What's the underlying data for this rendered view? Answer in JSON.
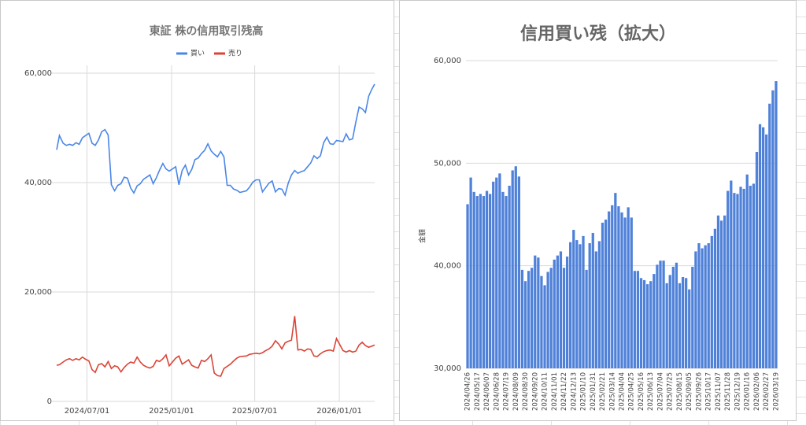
{
  "chart_data": [
    {
      "type": "line",
      "title": "東証 株の信用取引残高",
      "x": [
        "2024/04/26",
        "2024/05/02",
        "2024/05/10",
        "2024/05/17",
        "2024/05/24",
        "2024/05/31",
        "2024/06/07",
        "2024/06/14",
        "2024/06/21",
        "2024/06/28",
        "2024/07/05",
        "2024/07/12",
        "2024/07/19",
        "2024/07/26",
        "2024/08/02",
        "2024/08/09",
        "2024/08/16",
        "2024/08/23",
        "2024/08/30",
        "2024/09/06",
        "2024/09/13",
        "2024/09/20",
        "2024/09/27",
        "2024/10/04",
        "2024/10/11",
        "2024/10/18",
        "2024/10/25",
        "2024/11/01",
        "2024/11/08",
        "2024/11/15",
        "2024/11/22",
        "2024/11/29",
        "2024/12/06",
        "2024/12/13",
        "2024/12/20",
        "2024/12/27",
        "2025/01/10",
        "2025/01/17",
        "2025/01/24",
        "2025/01/31",
        "2025/02/07",
        "2025/02/14",
        "2025/02/21",
        "2025/02/28",
        "2025/03/07",
        "2025/03/14",
        "2025/03/21",
        "2025/03/28",
        "2025/04/04",
        "2025/04/11",
        "2025/04/18",
        "2025/04/25",
        "2025/05/02",
        "2025/05/09",
        "2025/05/16",
        "2025/05/23",
        "2025/05/30",
        "2025/06/13",
        "2025/06/20",
        "2025/06/27",
        "2025/07/04",
        "2025/07/11",
        "2025/07/18",
        "2025/07/25",
        "2025/08/01",
        "2025/08/08",
        "2025/08/15",
        "2025/08/22",
        "2025/08/29",
        "2025/09/05",
        "2025/09/12",
        "2025/09/19",
        "2025/09/26",
        "2025/10/03",
        "2025/10/10",
        "2025/10/17",
        "2025/10/24",
        "2025/10/31",
        "2025/11/07",
        "2025/11/14",
        "2025/11/21",
        "2025/11/28",
        "2025/12/05",
        "2025/12/12",
        "2025/12/19",
        "2025/12/26",
        "2026/01/09",
        "2026/01/16",
        "2026/01/23",
        "2026/01/30",
        "2026/02/06",
        "2026/02/13",
        "2026/02/20",
        "2026/02/27",
        "2026/03/06",
        "2026/03/13",
        "2026/03/19"
      ],
      "series": [
        {
          "name": "買い",
          "color": "#4a86e8",
          "values": [
            46000,
            48600,
            47200,
            46800,
            47000,
            46800,
            47300,
            47000,
            48200,
            48600,
            49000,
            47200,
            46800,
            47800,
            49300,
            49700,
            48700,
            39600,
            38500,
            39500,
            39800,
            41000,
            40800,
            39000,
            38100,
            39400,
            39800,
            40600,
            41000,
            41400,
            39800,
            40900,
            42300,
            43500,
            42500,
            42100,
            42900,
            39600,
            42200,
            43200,
            41400,
            42400,
            44200,
            44500,
            45300,
            45900,
            47100,
            45800,
            45200,
            44700,
            45700,
            44700,
            39500,
            39500,
            38800,
            38600,
            38200,
            38500,
            39200,
            40100,
            40500,
            40500,
            38300,
            39100,
            39900,
            40300,
            38300,
            38900,
            38800,
            37700,
            39900,
            41400,
            42200,
            41700,
            42000,
            42200,
            42900,
            43600,
            44900,
            44400,
            44900,
            47300,
            48300,
            47100,
            47000,
            47700,
            47500,
            48900,
            47800,
            48000,
            51100,
            53800,
            53500,
            52800,
            55800,
            57100,
            58000
          ]
        },
        {
          "name": "売り",
          "color": "#db4437",
          "values": [
            6600,
            6700,
            7200,
            7600,
            7800,
            7500,
            7800,
            7600,
            8100,
            7700,
            7400,
            5800,
            5300,
            6700,
            6900,
            6300,
            7300,
            6000,
            6500,
            6300,
            5400,
            6200,
            6800,
            7200,
            7000,
            8100,
            7200,
            6600,
            6300,
            6100,
            6400,
            7500,
            7300,
            7800,
            8500,
            6500,
            7900,
            8300,
            6800,
            7200,
            7600,
            6600,
            6300,
            6100,
            7500,
            7300,
            7800,
            8500,
            5200,
            4700,
            4600,
            6000,
            6400,
            6800,
            7400,
            7900,
            8200,
            8300,
            8600,
            8700,
            8800,
            8700,
            8900,
            9300,
            9600,
            10100,
            11100,
            10500,
            9600,
            10700,
            11000,
            11200,
            15600,
            9400,
            9500,
            9200,
            9600,
            9500,
            8300,
            8200,
            8700,
            9100,
            9300,
            9400,
            9200,
            11500,
            9300,
            9000,
            9300,
            9000,
            9200,
            10300,
            10800,
            10200,
            9900,
            10100,
            10300
          ]
        }
      ],
      "xlim": [
        "2024/04/26",
        "2026/03/19"
      ],
      "xticks": [
        "2024/07/01",
        "2025/01/01",
        "2025/07/01",
        "2026/01/01"
      ],
      "ylim": [
        0,
        60000
      ],
      "yticks": [
        0,
        {
          "value": 20000,
          "label": "20,000"
        },
        {
          "value": 40000,
          "label": "40,000"
        },
        {
          "value": 60000,
          "label": "60,000"
        }
      ],
      "grid": true,
      "legend": "top"
    },
    {
      "type": "bar",
      "title": "信用買い残（拡大）",
      "y_label": "金額",
      "color": "#4f81d9",
      "categories": [
        "2024/04/26",
        null,
        null,
        "2024/05/17",
        null,
        null,
        "2024/06/07",
        null,
        null,
        "2024/06/28",
        null,
        null,
        "2024/07/19",
        null,
        null,
        "2024/08/09",
        null,
        null,
        "2024/08/30",
        null,
        null,
        "2024/09/20",
        null,
        null,
        "2024/10/11",
        null,
        null,
        "2024/11/01",
        null,
        null,
        "2024/11/22",
        null,
        null,
        "2024/12/13",
        null,
        null,
        "2025/01/10",
        null,
        null,
        "2025/01/31",
        null,
        null,
        "2025/02/21",
        null,
        null,
        "2025/03/14",
        null,
        null,
        "2025/04/04",
        null,
        null,
        "2025/04/25",
        null,
        null,
        "2025/05/16",
        null,
        null,
        "2025/06/13",
        null,
        null,
        "2025/07/04",
        null,
        null,
        "2025/07/25",
        null,
        null,
        "2025/08/15",
        null,
        null,
        "2025/09/05",
        null,
        null,
        "2025/09/26",
        null,
        null,
        "2025/10/17",
        null,
        null,
        "2025/11/07",
        null,
        null,
        "2025/11/28",
        null,
        null,
        "2025/12/19",
        null,
        null,
        "2026/01/16",
        null,
        null,
        "2026/02/06",
        null,
        null,
        "2026/02/27",
        null,
        null,
        "2026/03/19"
      ],
      "values": [
        46000,
        48600,
        47200,
        46800,
        47000,
        46800,
        47300,
        47000,
        48200,
        48600,
        49000,
        47200,
        46800,
        47800,
        49300,
        49700,
        48700,
        39600,
        38500,
        39500,
        39800,
        41000,
        40800,
        39000,
        38100,
        39400,
        39800,
        40600,
        41000,
        41400,
        39800,
        40900,
        42300,
        43500,
        42500,
        42100,
        42900,
        39600,
        42200,
        43200,
        41400,
        42400,
        44200,
        44500,
        45300,
        45900,
        47100,
        45800,
        45200,
        44700,
        45700,
        44700,
        39500,
        39500,
        38800,
        38600,
        38200,
        38500,
        39200,
        40100,
        40500,
        40500,
        38300,
        39100,
        39900,
        40300,
        38300,
        38900,
        38800,
        37700,
        39900,
        41400,
        42200,
        41700,
        42000,
        42200,
        42900,
        43600,
        44900,
        44400,
        44900,
        47300,
        48300,
        47100,
        47000,
        47700,
        47500,
        48900,
        47800,
        48000,
        51100,
        53800,
        53500,
        52800,
        55800,
        57100,
        58000
      ],
      "ylim": [
        30000,
        60000
      ],
      "yticks": [
        {
          "value": 30000,
          "label": "30,000"
        },
        {
          "value": 40000,
          "label": "40,000"
        },
        {
          "value": 50000,
          "label": "50,000"
        },
        {
          "value": 60000,
          "label": "60,000"
        }
      ],
      "grid": true
    }
  ]
}
